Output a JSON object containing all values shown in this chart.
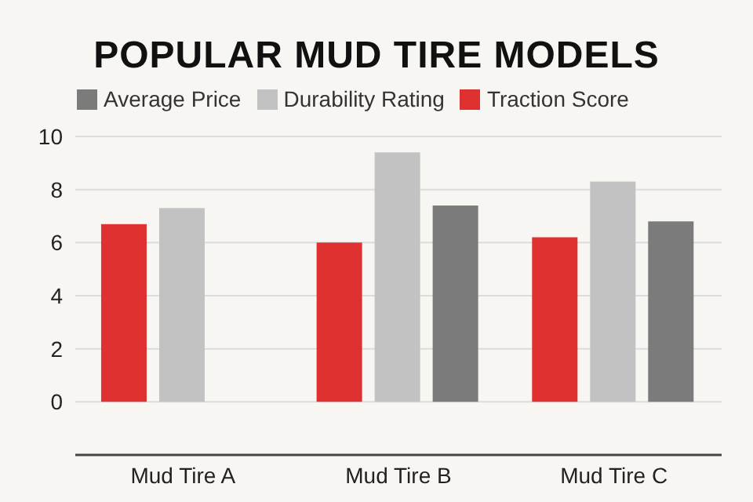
{
  "chart_data": {
    "type": "bar",
    "title": "POPULAR MUD TIRE MODELS",
    "categories": [
      "Mud Tire A",
      "Mud Tire B",
      "Mud Tire C"
    ],
    "series": [
      {
        "name": "Traction Score",
        "color": "#e03131",
        "values": [
          6.7,
          6.0,
          6.2
        ]
      },
      {
        "name": "Durability Rating",
        "color": "#c2c2c2",
        "values": [
          7.3,
          9.4,
          8.3
        ]
      },
      {
        "name": "Average Price",
        "color": "#7b7b7b",
        "values": [
          null,
          7.4,
          6.8
        ]
      }
    ],
    "ylim": [
      -2,
      10
    ],
    "yticks": [
      0,
      2,
      4,
      6,
      8,
      10
    ],
    "grid": "y",
    "legend": "top"
  }
}
